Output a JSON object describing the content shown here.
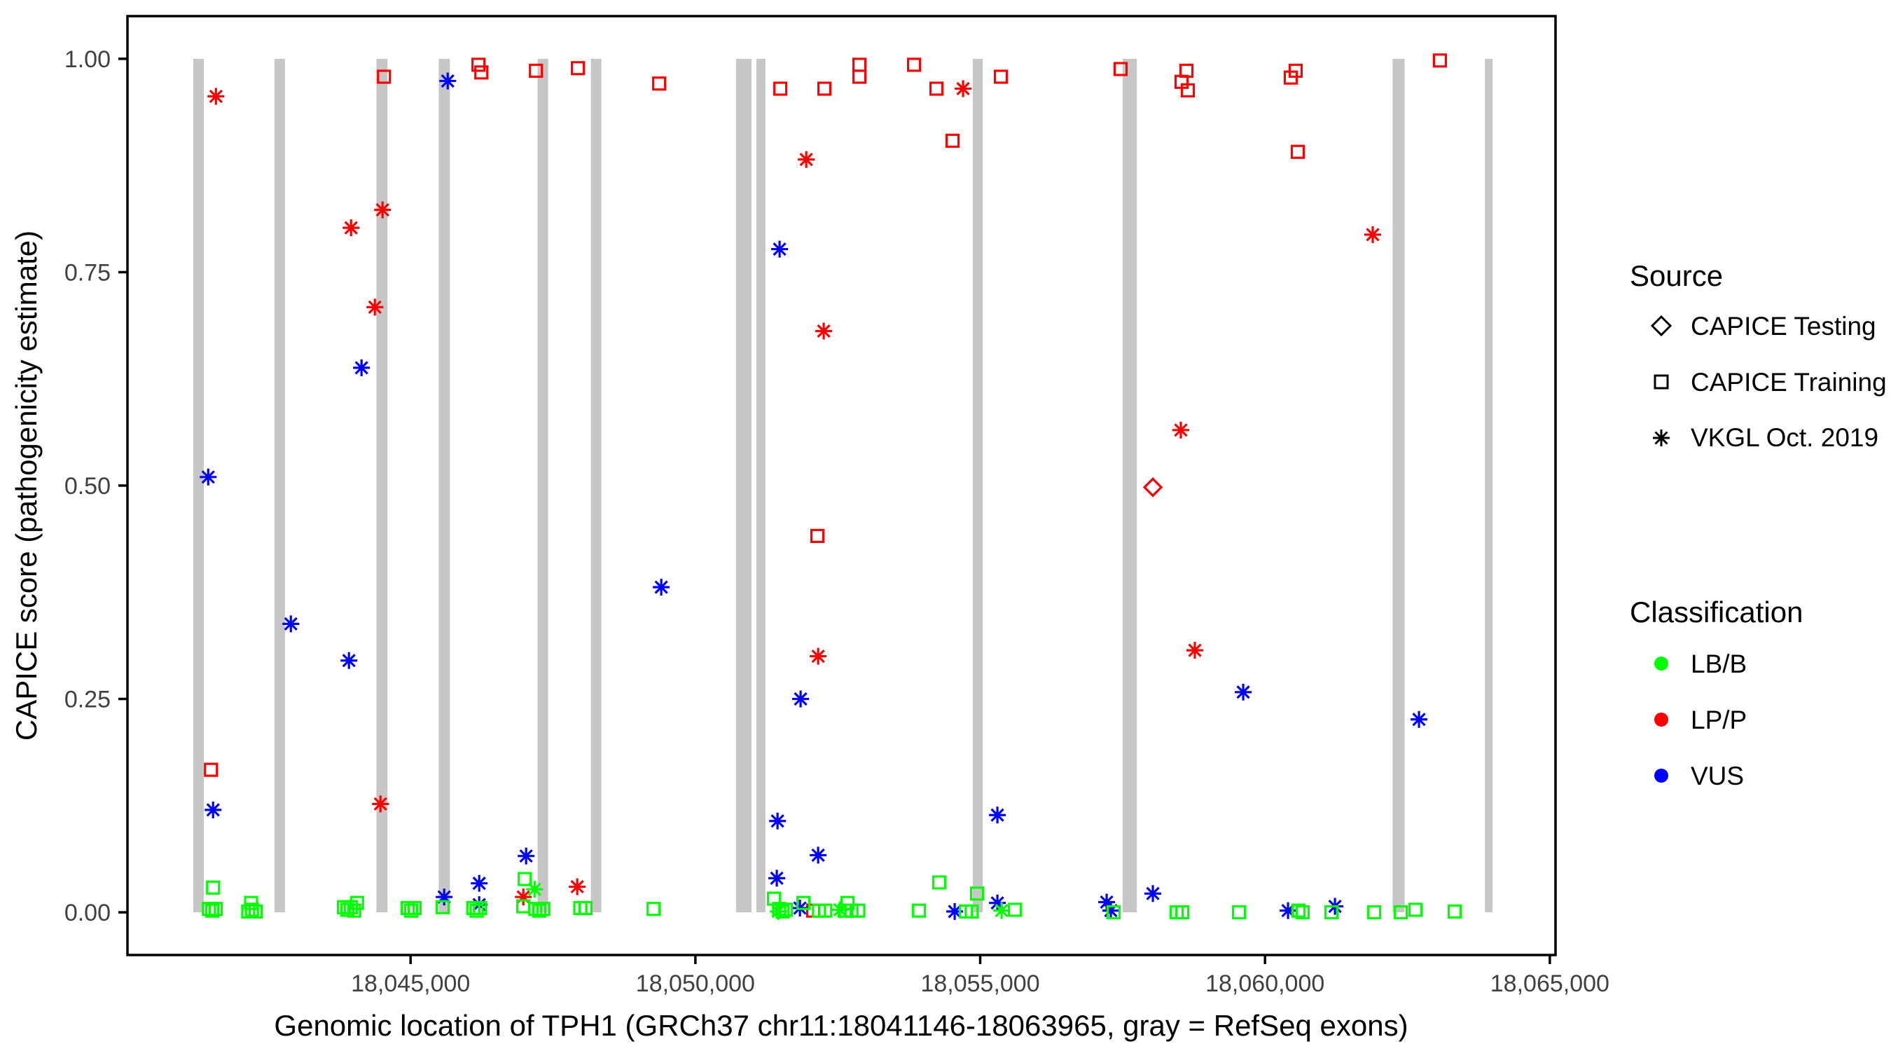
{
  "chart_data": {
    "type": "scatter",
    "title": "",
    "xlabel": "Genomic location of TPH1 (GRCh37 chr11:18041146-18063965, gray = RefSeq exons)",
    "ylabel": "CAPICE score (pathogenicity estimate)",
    "xlim": [
      18040030,
      18065100
    ],
    "ylim": [
      -0.05,
      1.05
    ],
    "grid": "off",
    "legend_position": "right",
    "x_ticks": [
      {
        "value": 18045000,
        "label": "18,045,000"
      },
      {
        "value": 18050000,
        "label": "18,050,000"
      },
      {
        "value": 18055000,
        "label": "18,055,000"
      },
      {
        "value": 18060000,
        "label": "18,060,000"
      },
      {
        "value": 18065000,
        "label": "18,065,000"
      }
    ],
    "y_ticks": [
      {
        "value": 0.0,
        "label": "0.00"
      },
      {
        "value": 0.25,
        "label": "0.25"
      },
      {
        "value": 0.5,
        "label": "0.50"
      },
      {
        "value": 0.75,
        "label": "0.75"
      },
      {
        "value": 1.0,
        "label": "1.00"
      }
    ],
    "exons": [
      {
        "start": 18041185,
        "end": 18041370
      },
      {
        "start": 18042610,
        "end": 18042795
      },
      {
        "start": 18044400,
        "end": 18044595
      },
      {
        "start": 18045495,
        "end": 18045690
      },
      {
        "start": 18047230,
        "end": 18047415
      },
      {
        "start": 18048165,
        "end": 18048350
      },
      {
        "start": 18050715,
        "end": 18050985
      },
      {
        "start": 18051070,
        "end": 18051230
      },
      {
        "start": 18054870,
        "end": 18055045
      },
      {
        "start": 18057500,
        "end": 18057750
      },
      {
        "start": 18062240,
        "end": 18062450
      },
      {
        "start": 18063860,
        "end": 18063995
      }
    ],
    "points": [
      {
        "bp": 18041583,
        "score": 0.956,
        "source": "VKGL Oct. 2019",
        "cls": "LP/P"
      },
      {
        "bp": 18044508,
        "score": 0.823,
        "source": "VKGL Oct. 2019",
        "cls": "LP/P"
      },
      {
        "bp": 18043955,
        "score": 0.802,
        "source": "VKGL Oct. 2019",
        "cls": "LP/P"
      },
      {
        "bp": 18044373,
        "score": 0.709,
        "source": "VKGL Oct. 2019",
        "cls": "LP/P"
      },
      {
        "bp": 18044471,
        "score": 0.127,
        "source": "VKGL Oct. 2019",
        "cls": "LP/P"
      },
      {
        "bp": 18051946,
        "score": 0.882,
        "source": "VKGL Oct. 2019",
        "cls": "LP/P"
      },
      {
        "bp": 18052253,
        "score": 0.681,
        "source": "VKGL Oct. 2019",
        "cls": "LP/P"
      },
      {
        "bp": 18052155,
        "score": 0.3,
        "source": "VKGL Oct. 2019",
        "cls": "LP/P"
      },
      {
        "bp": 18054699,
        "score": 0.965,
        "source": "VKGL Oct. 2019",
        "cls": "LP/P"
      },
      {
        "bp": 18058522,
        "score": 0.565,
        "source": "VKGL Oct. 2019",
        "cls": "LP/P"
      },
      {
        "bp": 18058768,
        "score": 0.307,
        "source": "VKGL Oct. 2019",
        "cls": "LP/P"
      },
      {
        "bp": 18061891,
        "score": 0.794,
        "source": "VKGL Oct. 2019",
        "cls": "LP/P"
      },
      {
        "bp": 18046979,
        "score": 0.018,
        "source": "VKGL Oct. 2019",
        "cls": "LP/P"
      },
      {
        "bp": 18047926,
        "score": 0.03,
        "source": "VKGL Oct. 2019",
        "cls": "LP/P"
      },
      {
        "bp": 18044533,
        "score": 0.979,
        "source": "CAPICE Training",
        "cls": "LP/P"
      },
      {
        "bp": 18046192,
        "score": 0.993,
        "source": "CAPICE Training",
        "cls": "LP/P"
      },
      {
        "bp": 18046242,
        "score": 0.984,
        "source": "CAPICE Training",
        "cls": "LP/P"
      },
      {
        "bp": 18047201,
        "score": 0.986,
        "source": "CAPICE Training",
        "cls": "LP/P"
      },
      {
        "bp": 18047938,
        "score": 0.989,
        "source": "CAPICE Training",
        "cls": "LP/P"
      },
      {
        "bp": 18049364,
        "score": 0.971,
        "source": "CAPICE Training",
        "cls": "LP/P"
      },
      {
        "bp": 18051491,
        "score": 0.965,
        "source": "CAPICE Training",
        "cls": "LP/P"
      },
      {
        "bp": 18052265,
        "score": 0.965,
        "source": "CAPICE Training",
        "cls": "LP/P"
      },
      {
        "bp": 18052880,
        "score": 0.993,
        "source": "CAPICE Training",
        "cls": "LP/P"
      },
      {
        "bp": 18052880,
        "score": 0.979,
        "source": "CAPICE Training",
        "cls": "LP/P"
      },
      {
        "bp": 18053839,
        "score": 0.993,
        "source": "CAPICE Training",
        "cls": "LP/P"
      },
      {
        "bp": 18054232,
        "score": 0.965,
        "source": "CAPICE Training",
        "cls": "LP/P"
      },
      {
        "bp": 18054515,
        "score": 0.904,
        "source": "CAPICE Training",
        "cls": "LP/P"
      },
      {
        "bp": 18055363,
        "score": 0.979,
        "source": "CAPICE Training",
        "cls": "LP/P"
      },
      {
        "bp": 18057465,
        "score": 0.988,
        "source": "CAPICE Training",
        "cls": "LP/P"
      },
      {
        "bp": 18058621,
        "score": 0.986,
        "source": "CAPICE Training",
        "cls": "LP/P"
      },
      {
        "bp": 18058535,
        "score": 0.973,
        "source": "CAPICE Training",
        "cls": "LP/P"
      },
      {
        "bp": 18058645,
        "score": 0.963,
        "source": "CAPICE Training",
        "cls": "LP/P"
      },
      {
        "bp": 18060538,
        "score": 0.986,
        "source": "CAPICE Training",
        "cls": "LP/P"
      },
      {
        "bp": 18060452,
        "score": 0.978,
        "source": "CAPICE Training",
        "cls": "LP/P"
      },
      {
        "bp": 18060575,
        "score": 0.891,
        "source": "CAPICE Training",
        "cls": "LP/P"
      },
      {
        "bp": 18063070,
        "score": 0.998,
        "source": "CAPICE Training",
        "cls": "LP/P"
      },
      {
        "bp": 18041496,
        "score": 0.167,
        "source": "CAPICE Training",
        "cls": "LP/P"
      },
      {
        "bp": 18052142,
        "score": 0.441,
        "source": "CAPICE Training",
        "cls": "LP/P"
      },
      {
        "bp": 18052068,
        "score": 0.002,
        "source": "CAPICE Training",
        "cls": "LP/P"
      },
      {
        "bp": 18058031,
        "score": 0.498,
        "source": "CAPICE Testing",
        "cls": "LP/P"
      },
      {
        "bp": 18041447,
        "score": 0.51,
        "source": "VKGL Oct. 2019",
        "cls": "VUS"
      },
      {
        "bp": 18041533,
        "score": 0.12,
        "source": "VKGL Oct. 2019",
        "cls": "VUS"
      },
      {
        "bp": 18042898,
        "score": 0.338,
        "source": "VKGL Oct. 2019",
        "cls": "VUS"
      },
      {
        "bp": 18043918,
        "score": 0.295,
        "source": "VKGL Oct. 2019",
        "cls": "VUS"
      },
      {
        "bp": 18044139,
        "score": 0.638,
        "source": "VKGL Oct. 2019",
        "cls": "VUS"
      },
      {
        "bp": 18045652,
        "score": 0.974,
        "source": "VKGL Oct. 2019",
        "cls": "VUS"
      },
      {
        "bp": 18049401,
        "score": 0.381,
        "source": "VKGL Oct. 2019",
        "cls": "VUS"
      },
      {
        "bp": 18051478,
        "score": 0.777,
        "source": "VKGL Oct. 2019",
        "cls": "VUS"
      },
      {
        "bp": 18051847,
        "score": 0.25,
        "source": "VKGL Oct. 2019",
        "cls": "VUS"
      },
      {
        "bp": 18051442,
        "score": 0.107,
        "source": "VKGL Oct. 2019",
        "cls": "VUS"
      },
      {
        "bp": 18051429,
        "score": 0.04,
        "source": "VKGL Oct. 2019",
        "cls": "VUS"
      },
      {
        "bp": 18052155,
        "score": 0.067,
        "source": "VKGL Oct. 2019",
        "cls": "VUS"
      },
      {
        "bp": 18055302,
        "score": 0.114,
        "source": "VKGL Oct. 2019",
        "cls": "VUS"
      },
      {
        "bp": 18059617,
        "score": 0.258,
        "source": "VKGL Oct. 2019",
        "cls": "VUS"
      },
      {
        "bp": 18062703,
        "score": 0.226,
        "source": "VKGL Oct. 2019",
        "cls": "VUS"
      },
      {
        "bp": 18058031,
        "score": 0.022,
        "source": "VKGL Oct. 2019",
        "cls": "VUS"
      },
      {
        "bp": 18047028,
        "score": 0.066,
        "source": "VKGL Oct. 2019",
        "cls": "VUS"
      },
      {
        "bp": 18046205,
        "score": 0.034,
        "source": "VKGL Oct. 2019",
        "cls": "VUS"
      },
      {
        "bp": 18045590,
        "score": 0.018,
        "source": "VKGL Oct. 2019",
        "cls": "VUS"
      },
      {
        "bp": 18046205,
        "score": 0.009,
        "source": "VKGL Oct. 2019",
        "cls": "VUS"
      },
      {
        "bp": 18051835,
        "score": 0.005,
        "source": "VKGL Oct. 2019",
        "cls": "VUS"
      },
      {
        "bp": 18054552,
        "score": 0.001,
        "source": "VKGL Oct. 2019",
        "cls": "VUS"
      },
      {
        "bp": 18055302,
        "score": 0.011,
        "source": "VKGL Oct. 2019",
        "cls": "VUS"
      },
      {
        "bp": 18057220,
        "score": 0.012,
        "source": "VKGL Oct. 2019",
        "cls": "VUS"
      },
      {
        "bp": 18057293,
        "score": 0.002,
        "source": "VKGL Oct. 2019",
        "cls": "VUS"
      },
      {
        "bp": 18060404,
        "score": 0.002,
        "source": "VKGL Oct. 2019",
        "cls": "VUS"
      },
      {
        "bp": 18061228,
        "score": 0.007,
        "source": "VKGL Oct. 2019",
        "cls": "VUS"
      },
      {
        "bp": 18041533,
        "score": 0.029,
        "source": "CAPICE Training",
        "cls": "LB/B"
      },
      {
        "bp": 18041460,
        "score": 0.004,
        "source": "CAPICE Training",
        "cls": "LB/B"
      },
      {
        "bp": 18041520,
        "score": 0.002,
        "source": "CAPICE Training",
        "cls": "LB/B"
      },
      {
        "bp": 18041580,
        "score": 0.004,
        "source": "CAPICE Training",
        "cls": "LB/B"
      },
      {
        "bp": 18042200,
        "score": 0.011,
        "source": "CAPICE Training",
        "cls": "LB/B"
      },
      {
        "bp": 18042150,
        "score": 0.001,
        "source": "CAPICE Training",
        "cls": "LB/B"
      },
      {
        "bp": 18042215,
        "score": 0.003,
        "source": "CAPICE Training",
        "cls": "LB/B"
      },
      {
        "bp": 18042280,
        "score": 0.001,
        "source": "CAPICE Training",
        "cls": "LB/B"
      },
      {
        "bp": 18043830,
        "score": 0.006,
        "source": "CAPICE Training",
        "cls": "LB/B"
      },
      {
        "bp": 18043890,
        "score": 0.003,
        "source": "CAPICE Training",
        "cls": "LB/B"
      },
      {
        "bp": 18043950,
        "score": 0.006,
        "source": "CAPICE Training",
        "cls": "LB/B"
      },
      {
        "bp": 18044010,
        "score": 0.002,
        "source": "CAPICE Training",
        "cls": "LB/B"
      },
      {
        "bp": 18044060,
        "score": 0.011,
        "source": "CAPICE Training",
        "cls": "LB/B"
      },
      {
        "bp": 18044950,
        "score": 0.005,
        "source": "CAPICE Training",
        "cls": "LB/B"
      },
      {
        "bp": 18045010,
        "score": 0.002,
        "source": "CAPICE Training",
        "cls": "LB/B"
      },
      {
        "bp": 18045070,
        "score": 0.005,
        "source": "CAPICE Training",
        "cls": "LB/B"
      },
      {
        "bp": 18045565,
        "score": 0.006,
        "source": "CAPICE Training",
        "cls": "LB/B"
      },
      {
        "bp": 18046100,
        "score": 0.005,
        "source": "CAPICE Training",
        "cls": "LB/B"
      },
      {
        "bp": 18046160,
        "score": 0.002,
        "source": "CAPICE Training",
        "cls": "LB/B"
      },
      {
        "bp": 18046220,
        "score": 0.005,
        "source": "CAPICE Training",
        "cls": "LB/B"
      },
      {
        "bp": 18047004,
        "score": 0.039,
        "source": "CAPICE Training",
        "cls": "LB/B"
      },
      {
        "bp": 18046979,
        "score": 0.007,
        "source": "CAPICE Training",
        "cls": "LB/B"
      },
      {
        "bp": 18047190,
        "score": 0.004,
        "source": "CAPICE Training",
        "cls": "LB/B"
      },
      {
        "bp": 18047260,
        "score": 0.002,
        "source": "CAPICE Training",
        "cls": "LB/B"
      },
      {
        "bp": 18047330,
        "score": 0.004,
        "source": "CAPICE Training",
        "cls": "LB/B"
      },
      {
        "bp": 18047980,
        "score": 0.005,
        "source": "CAPICE Training",
        "cls": "LB/B"
      },
      {
        "bp": 18048070,
        "score": 0.005,
        "source": "CAPICE Training",
        "cls": "LB/B"
      },
      {
        "bp": 18049266,
        "score": 0.004,
        "source": "CAPICE Training",
        "cls": "LB/B"
      },
      {
        "bp": 18051380,
        "score": 0.016,
        "source": "CAPICE Training",
        "cls": "LB/B"
      },
      {
        "bp": 18051470,
        "score": 0.004,
        "source": "CAPICE Training",
        "cls": "LB/B"
      },
      {
        "bp": 18051530,
        "score": 0.001,
        "source": "CAPICE Training",
        "cls": "LB/B"
      },
      {
        "bp": 18051590,
        "score": 0.003,
        "source": "CAPICE Training",
        "cls": "LB/B"
      },
      {
        "bp": 18051897,
        "score": 0.011,
        "source": "CAPICE Training",
        "cls": "LB/B"
      },
      {
        "bp": 18052170,
        "score": 0.002,
        "source": "CAPICE Training",
        "cls": "LB/B"
      },
      {
        "bp": 18052280,
        "score": 0.002,
        "source": "CAPICE Training",
        "cls": "LB/B"
      },
      {
        "bp": 18052671,
        "score": 0.011,
        "source": "CAPICE Training",
        "cls": "LB/B"
      },
      {
        "bp": 18052620,
        "score": 0.002,
        "source": "CAPICE Training",
        "cls": "LB/B"
      },
      {
        "bp": 18052740,
        "score": 0.002,
        "source": "CAPICE Training",
        "cls": "LB/B"
      },
      {
        "bp": 18052860,
        "score": 0.002,
        "source": "CAPICE Training",
        "cls": "LB/B"
      },
      {
        "bp": 18053925,
        "score": 0.002,
        "source": "CAPICE Training",
        "cls": "LB/B"
      },
      {
        "bp": 18054281,
        "score": 0.035,
        "source": "CAPICE Training",
        "cls": "LB/B"
      },
      {
        "bp": 18054945,
        "score": 0.022,
        "source": "CAPICE Training",
        "cls": "LB/B"
      },
      {
        "bp": 18054750,
        "score": 0.001,
        "source": "CAPICE Training",
        "cls": "LB/B"
      },
      {
        "bp": 18054850,
        "score": 0.001,
        "source": "CAPICE Training",
        "cls": "LB/B"
      },
      {
        "bp": 18055609,
        "score": 0.003,
        "source": "CAPICE Training",
        "cls": "LB/B"
      },
      {
        "bp": 18057342,
        "score": 0.0,
        "source": "CAPICE Training",
        "cls": "LB/B"
      },
      {
        "bp": 18058450,
        "score": 0.0,
        "source": "CAPICE Training",
        "cls": "LB/B"
      },
      {
        "bp": 18058548,
        "score": 0.0,
        "source": "CAPICE Training",
        "cls": "LB/B"
      },
      {
        "bp": 18059543,
        "score": 0.0,
        "source": "CAPICE Training",
        "cls": "LB/B"
      },
      {
        "bp": 18060587,
        "score": 0.002,
        "source": "CAPICE Training",
        "cls": "LB/B"
      },
      {
        "bp": 18060660,
        "score": 0.0,
        "source": "CAPICE Training",
        "cls": "LB/B"
      },
      {
        "bp": 18061166,
        "score": 0.0,
        "source": "CAPICE Training",
        "cls": "LB/B"
      },
      {
        "bp": 18061916,
        "score": 0.0,
        "source": "CAPICE Training",
        "cls": "LB/B"
      },
      {
        "bp": 18062383,
        "score": 0.0,
        "source": "CAPICE Training",
        "cls": "LB/B"
      },
      {
        "bp": 18062641,
        "score": 0.003,
        "source": "CAPICE Training",
        "cls": "LB/B"
      },
      {
        "bp": 18063330,
        "score": 0.001,
        "source": "CAPICE Training",
        "cls": "LB/B"
      },
      {
        "bp": 18047176,
        "score": 0.027,
        "source": "VKGL Oct. 2019",
        "cls": "LB/B"
      },
      {
        "bp": 18051454,
        "score": 0.001,
        "source": "VKGL Oct. 2019",
        "cls": "LB/B"
      },
      {
        "bp": 18052536,
        "score": 0.003,
        "source": "VKGL Oct. 2019",
        "cls": "LB/B"
      },
      {
        "bp": 18055376,
        "score": 0.002,
        "source": "VKGL Oct. 2019",
        "cls": "LB/B"
      }
    ]
  },
  "legend": {
    "source_title": "Source",
    "source_items": [
      {
        "label": "CAPICE Testing",
        "marker": "diamond"
      },
      {
        "label": "CAPICE Training",
        "marker": "square"
      },
      {
        "label": "VKGL Oct. 2019",
        "marker": "asterisk"
      }
    ],
    "classification_title": "Classification",
    "classification_items": [
      {
        "label": "LB/B",
        "color": "#00ff00"
      },
      {
        "label": "LP/P",
        "color": "#ff0000"
      },
      {
        "label": "VUS",
        "color": "#0000ff"
      }
    ]
  },
  "colors": {
    "LB/B": "#00ff00",
    "LP/P": "#ff0000",
    "VUS": "#0000ff",
    "exon": "#c6c6c6",
    "tick_label": "#404040",
    "panel_border": "#000000"
  }
}
